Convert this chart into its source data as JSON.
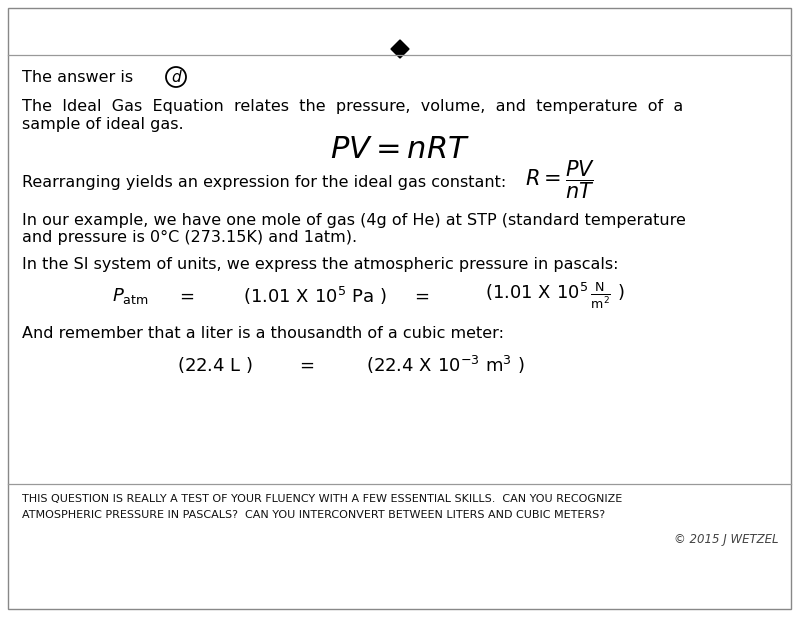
{
  "bg_color": "#ffffff",
  "border_color": "#aaaaaa",
  "diamond_color": "#000000",
  "text_color": "#000000",
  "footer_color": "#111111",
  "answer_text": "The answer is",
  "answer_letter": "d",
  "para1_line1": "The  Ideal  Gas  Equation  relates  the  pressure,  volume,  and  temperature  of  a",
  "para1_line2": "sample of ideal gas.",
  "para3_line1": "In our example, we have one mole of gas (4g of He) at STP (standard temperature",
  "para3_line2": "and pressure is 0°C (273.15K) and 1atm).",
  "para4": "In the SI system of units, we express the atmospheric pressure in pascals:",
  "para5": "And remember that a liter is a thousandth of a cubic meter:",
  "rearrange_text": "Rearranging yields an expression for the ideal gas constant:",
  "footer_line1": "THIS QUESTION IS REALLY A TEST OF YOUR FLUENCY WITH A FEW ESSENTIAL SKILLS.  CAN YOU RECOGNIZE",
  "footer_line2": "ATMOSPHERIC PRESSURE IN PASCALS?  CAN YOU INTERCONVERT BETWEEN LITERS AND CUBIC METERS?",
  "copyright": "© 2015 J WETZEL",
  "fig_width": 8.0,
  "fig_height": 6.17,
  "dpi": 100
}
